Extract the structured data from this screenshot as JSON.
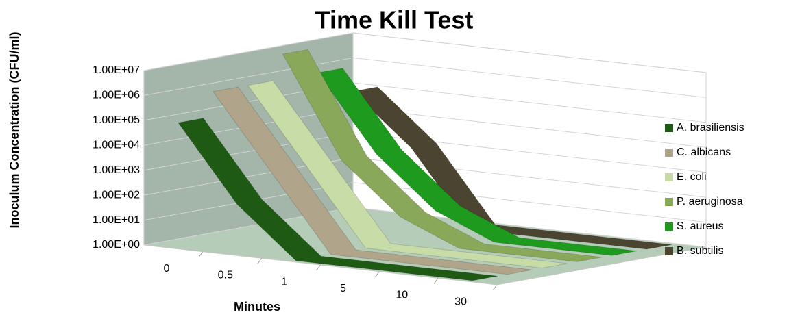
{
  "chart_data": {
    "type": "line3d",
    "title": "Time Kill Test",
    "x_label": "Minutes",
    "y_label": "Inoculum Concentration (CFU/ml)",
    "categories": [
      "0",
      "0.5",
      "1",
      "5",
      "10",
      "30"
    ],
    "log_scale": true,
    "grid": true,
    "legend": "right",
    "ylim": [
      1,
      10000000
    ],
    "yticks": [
      {
        "value": 1,
        "label": "1.00E+00"
      },
      {
        "value": 10,
        "label": "1.00E+01"
      },
      {
        "value": 100,
        "label": "1.00E+02"
      },
      {
        "value": 1000,
        "label": "1.00E+03"
      },
      {
        "value": 10000,
        "label": "1.00E+04"
      },
      {
        "value": 100000,
        "label": "1.00E+05"
      },
      {
        "value": 1000000,
        "label": "1.00E+06"
      },
      {
        "value": 10000000,
        "label": "1.00E+07"
      }
    ],
    "series": [
      {
        "name": "A. brasiliensis",
        "color": "#1e5a14",
        "values": [
          100000,
          100,
          1,
          1,
          1,
          1
        ]
      },
      {
        "name": "C. albicans",
        "color": "#b0a58a",
        "values": [
          1000000,
          1000,
          1,
          1,
          1,
          1
        ]
      },
      {
        "name": "E. coli",
        "color": "#c8dca8",
        "values": [
          1000000,
          1000,
          1,
          1,
          1,
          1
        ]
      },
      {
        "name": "P. aeruginosa",
        "color": "#8aa85a",
        "values": [
          10000000,
          1000,
          10,
          1,
          1,
          1
        ]
      },
      {
        "name": "S. aureus",
        "color": "#1e9a1e",
        "values": [
          1000000,
          1000,
          10,
          1,
          1,
          1
        ]
      },
      {
        "name": "B. subtilis",
        "color": "#4a4430",
        "values": [
          100000,
          1000,
          1,
          1,
          1,
          1
        ]
      }
    ]
  }
}
